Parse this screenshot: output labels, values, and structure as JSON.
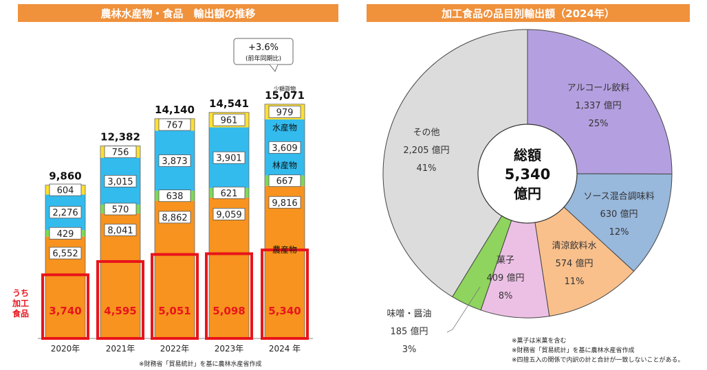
{
  "left_banner": "農林水産物・食品　輸出額の推移",
  "right_banner": "加工食品の品目別輸出額（2024年）",
  "uchi_label": [
    "うち",
    "加工",
    "食品"
  ],
  "growth_callout": [
    "+3.6%",
    "(前年同期比)"
  ],
  "left_footnote": "※財務省「貿易統計」を基に農林水産省作成",
  "segment_labels": {
    "small": "少額貨物",
    "fishery": "水産物",
    "forestry": "林産物",
    "agri": "農産物"
  },
  "right_footnotes": [
    "※菓子は米菓を含む",
    "※財務省「貿易統計」を基に農林水産省作成",
    "※四捨五入の関係で内訳の計と合計が一致しないことがある。"
  ],
  "colors": {
    "agri": "#f7931e",
    "forestry": "#7ed957",
    "fishery": "#33bbee",
    "small": "#ffe033",
    "processed_box": "#e8141b",
    "banner": "#f0913c"
  },
  "chart_data": [
    {
      "type": "bar",
      "stacked": true,
      "title": "農林水産物・食品　輸出額の推移",
      "categories": [
        "2020年",
        "2021年",
        "2022年",
        "2023年",
        "2024 年"
      ],
      "totals": [
        "9,860",
        "12,382",
        "14,140",
        "14,541",
        "15,071"
      ],
      "series": [
        {
          "name": "農産物",
          "values": [
            6552,
            8041,
            8862,
            9059,
            9816
          ],
          "labels": [
            "6,552",
            "8,041",
            "8,862",
            "9,059",
            "9,816"
          ]
        },
        {
          "name": "林産物",
          "values": [
            429,
            570,
            638,
            621,
            667
          ],
          "labels": [
            "429",
            "570",
            "638",
            "621",
            "667"
          ]
        },
        {
          "name": "水産物",
          "values": [
            2276,
            3015,
            3873,
            3901,
            3609
          ],
          "labels": [
            "2,276",
            "3,015",
            "3,873",
            "3,901",
            "3,609"
          ]
        },
        {
          "name": "少額貨物",
          "values": [
            604,
            756,
            767,
            961,
            979
          ],
          "labels": [
            "604",
            "756",
            "767",
            "961",
            "979"
          ]
        }
      ],
      "processed_food": {
        "values": [
          3740,
          4595,
          5051,
          5098,
          5340
        ],
        "labels": [
          "3,740",
          "4,595",
          "5,051",
          "5,098",
          "5,340"
        ]
      }
    },
    {
      "type": "pie",
      "title": "加工食品の品目別輸出額（2024年）",
      "center_label": [
        "総額",
        "5,340",
        "億円"
      ],
      "slices": [
        {
          "name": "アルコール飲料",
          "value": 1337,
          "value_label": "1,337 億円",
          "pct": "25%",
          "color": "#b4a0e0"
        },
        {
          "name": "ソース混合調味料",
          "value": 630,
          "value_label": "630 億円",
          "pct": "12%",
          "color": "#98b8dc"
        },
        {
          "name": "清涼飲料水",
          "value": 574,
          "value_label": "574 億円",
          "pct": "11%",
          "color": "#f9c08c"
        },
        {
          "name": "菓子",
          "value": 409,
          "value_label": "409 億円",
          "pct": "8%",
          "color": "#ecc0e4"
        },
        {
          "name": "味噌・醤油",
          "value": 185,
          "value_label": "185 億円",
          "pct": "3%",
          "color": "#8fd45e"
        },
        {
          "name": "その他",
          "value": 2205,
          "value_label": "2,205 億円",
          "pct": "41%",
          "color": "#dcdcdc"
        }
      ]
    }
  ]
}
